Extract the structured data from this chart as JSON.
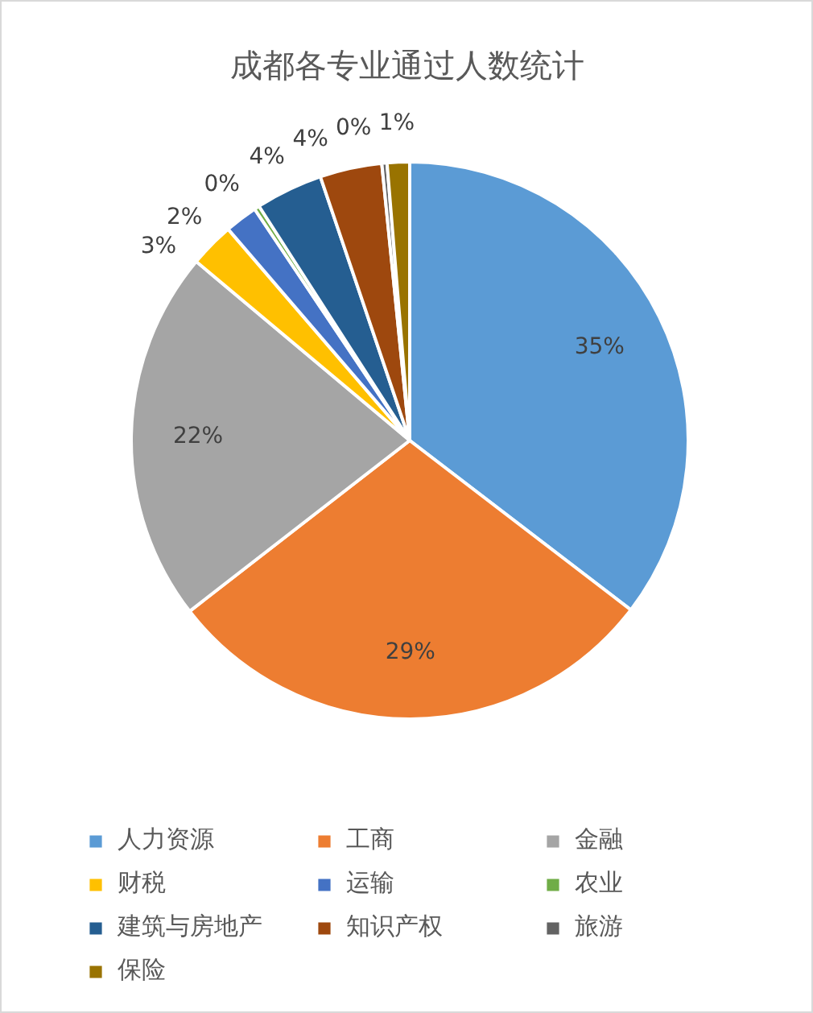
{
  "chart_data": {
    "type": "pie",
    "title": "成都各专业通过人数统计",
    "categories": [
      "人力资源",
      "工商",
      "金融",
      "财税",
      "运输",
      "农业",
      "建筑与房地产",
      "知识产权",
      "旅游",
      "保险"
    ],
    "values": [
      35.4,
      29.1,
      21.6,
      2.6,
      1.9,
      0.3,
      3.9,
      3.6,
      0.3,
      1.3
    ],
    "colors": [
      "#5b9bd5",
      "#ed7d31",
      "#a5a5a5",
      "#ffc000",
      "#4472c4",
      "#70ad47",
      "#255e91",
      "#9e480e",
      "#636363",
      "#997300"
    ],
    "value_labels": [
      "35%",
      "29%",
      "22%",
      "3%",
      "2%",
      "0%",
      "4%",
      "4%",
      "0%",
      "1%"
    ],
    "legend": "bottom"
  }
}
